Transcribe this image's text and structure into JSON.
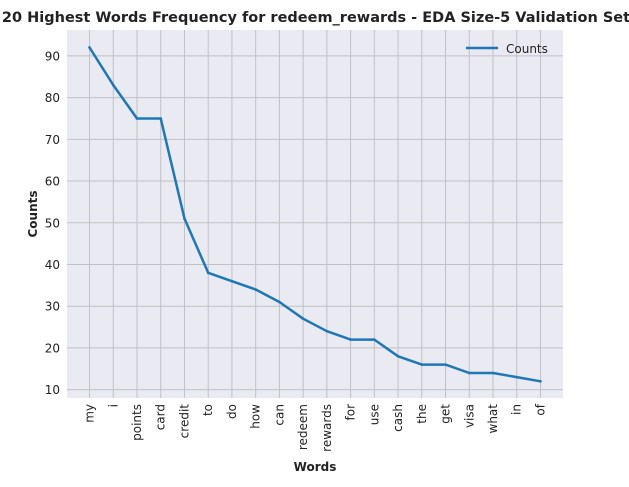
{
  "chart_data": {
    "type": "line",
    "title": "20 Highest Words Frequency for redeem_rewards - EDA Size-5 Validation Set",
    "xlabel": "Words",
    "ylabel": "Counts",
    "categories": [
      "my",
      "i",
      "points",
      "card",
      "credit",
      "to",
      "do",
      "how",
      "can",
      "redeem",
      "rewards",
      "for",
      "use",
      "cash",
      "the",
      "get",
      "visa",
      "what",
      "in",
      "of"
    ],
    "series": [
      {
        "name": "Counts",
        "values": [
          92,
          83,
          75,
          75,
          51,
          38,
          36,
          34,
          31,
          27,
          24,
          22,
          22,
          18,
          16,
          16,
          14,
          14,
          13,
          12
        ],
        "color": "#1f77b4"
      }
    ],
    "ylim": [
      8,
      96.2
    ],
    "yticks": [
      10,
      20,
      30,
      40,
      50,
      60,
      70,
      80,
      90
    ],
    "grid": true,
    "legend_position": "top-right",
    "background_color": "#eaeaf2",
    "grid_color": "#c0c0c6"
  }
}
